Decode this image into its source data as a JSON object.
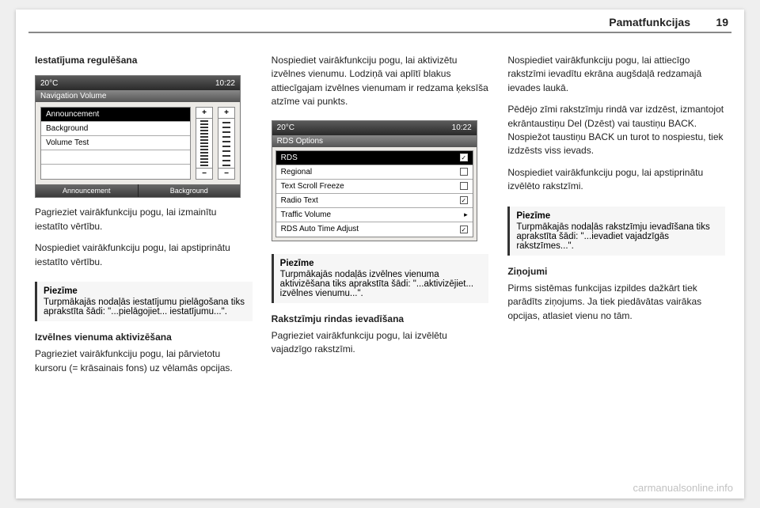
{
  "header": {
    "section": "Pamatfunkcijas",
    "page": "19"
  },
  "col1": {
    "heading": "Iestatījuma regulēšana",
    "device": {
      "temp": "20°C",
      "time": "10:22",
      "title": "Navigation Volume",
      "items": [
        "Announcement",
        "Background",
        "Volume Test"
      ],
      "footer": [
        "Announcement",
        "Background"
      ]
    },
    "p1": "Pagrieziet vairākfunkciju pogu, lai izmainītu iestatīto vērtību.",
    "p2": "Nospiediet vairākfunkciju pogu, lai apstiprinātu iestatīto vērtību.",
    "note_title": "Piezīme",
    "note_body": "Turpmākajās nodaļās iestatījumu pielāgošana tiks aprakstīta šādi: \"...pielāgojiet... iestatījumu...\".",
    "sub": "Izvēlnes vienuma aktivizēšana",
    "p3": "Pagrieziet vairākfunkciju pogu, lai pārvietotu kursoru (= krāsainais fons) uz vēlamās opcijas."
  },
  "col2": {
    "p1": "Nospiediet vairākfunkciju pogu, lai aktivizētu izvēlnes vienumu. Lodziņā vai aplītī blakus attiecīgajam izvēlnes vienumam ir redzama ķeksīša atzīme vai punkts.",
    "device": {
      "temp": "20°C",
      "time": "10:22",
      "title": "RDS Options",
      "items": [
        {
          "label": "RDS",
          "icon": "check-on"
        },
        {
          "label": "Regional",
          "icon": "check-off"
        },
        {
          "label": "Text Scroll Freeze",
          "icon": "check-off"
        },
        {
          "label": "Radio Text",
          "icon": "check-on"
        },
        {
          "label": "Traffic Volume",
          "icon": "arrow"
        },
        {
          "label": "RDS Auto Time Adjust",
          "icon": "check-on"
        }
      ]
    },
    "note_title": "Piezīme",
    "note_body": "Turpmākajās nodaļās izvēlnes vienuma aktivizēšana tiks aprakstīta šādi: \"...aktivizējiet... izvēlnes vienumu...\".",
    "sub": "Rakstzīmju rindas ievadīšana",
    "p2": "Pagrieziet vairākfunkciju pogu, lai izvēlētu vajadzīgo rakstzīmi."
  },
  "col3": {
    "p1": "Nospiediet vairākfunkciju pogu, lai attiecīgo rakstzīmi ievadītu ekrāna augšdaļā redzamajā ievades laukā.",
    "p2": "Pēdējo zīmi rakstzīmju rindā var izdzēst, izmantojot ekrāntaustiņu Del (Dzēst) vai taustiņu BACK. Nospiežot taustiņu BACK un turot to nospiestu, tiek izdzēsts viss ievads.",
    "p3": "Nospiediet vairākfunkciju pogu, lai apstiprinātu izvēlēto rakstzīmi.",
    "note_title": "Piezīme",
    "note_body": "Turpmākajās nodaļās rakstzīmju ievadīšana tiks aprakstīta šādi: \"...ievadiet vajadzīgās rakstzīmes...\".",
    "sub": "Ziņojumi",
    "p4": "Pirms sistēmas funkcijas izpildes dažkārt tiek parādīts ziņojums. Ja tiek piedāvātas vairākas opcijas, atlasiet vienu no tām."
  },
  "watermark": "carmanualsonline.info"
}
